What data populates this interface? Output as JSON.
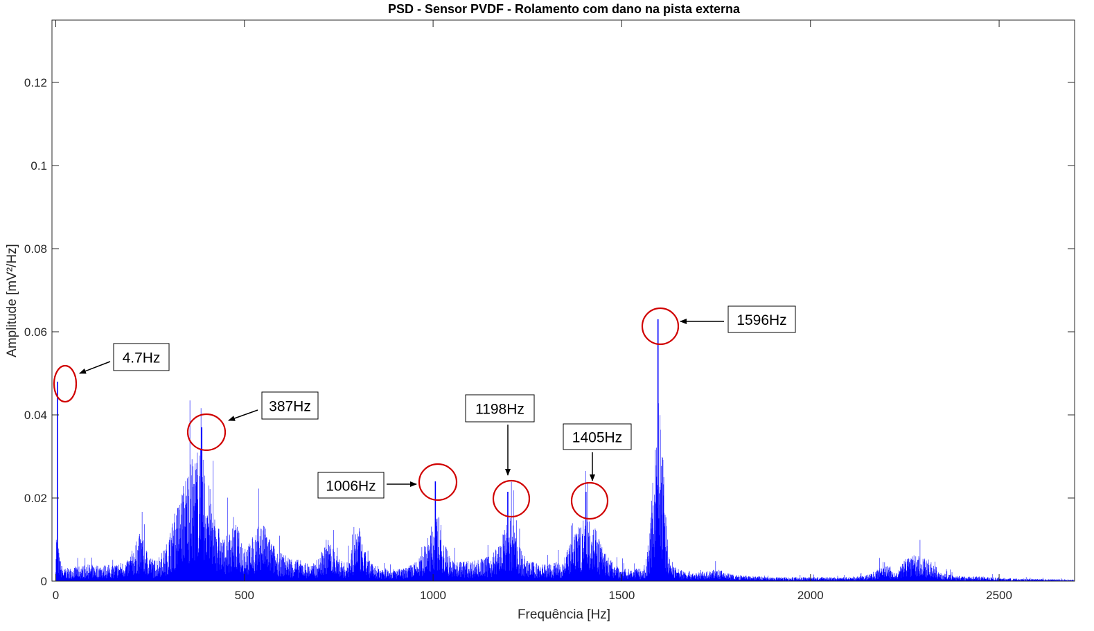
{
  "chart_data": {
    "type": "line",
    "title": "PSD - Sensor PVDF - Rolamento com dano na pista externa",
    "xlabel": "Frequência [Hz]",
    "ylabel": "Amplitude [mV²/Hz]",
    "xlim": [
      -10,
      2700
    ],
    "ylim": [
      0,
      0.135
    ],
    "xticks": [
      0,
      500,
      1000,
      1500,
      2000,
      2500
    ],
    "xtick_labels": [
      "0",
      "500",
      "1000",
      "1500",
      "2000",
      "2500"
    ],
    "yticks": [
      0,
      0.02,
      0.04,
      0.06,
      0.08,
      0.1,
      0.12
    ],
    "ytick_labels": [
      "0",
      "0.02",
      "0.04",
      "0.06",
      "0.08",
      "0.1",
      "0.12"
    ],
    "grid": false,
    "series_color": "#0000ff",
    "highlight_color": "#d00000",
    "peaks": [
      {
        "label": "4.7Hz",
        "x": 4.7,
        "y": 0.048
      },
      {
        "label": "387Hz",
        "x": 387,
        "y": 0.037
      },
      {
        "label": "1006Hz",
        "x": 1006,
        "y": 0.024
      },
      {
        "label": "1198Hz",
        "x": 1198,
        "y": 0.0215
      },
      {
        "label": "1405Hz",
        "x": 1405,
        "y": 0.0215
      },
      {
        "label": "1596Hz",
        "x": 1596,
        "y": 0.063
      }
    ],
    "envelope": [
      [
        0,
        0.014
      ],
      [
        10,
        0.006
      ],
      [
        20,
        0.003
      ],
      [
        80,
        0.004
      ],
      [
        150,
        0.004
      ],
      [
        190,
        0.005
      ],
      [
        210,
        0.009
      ],
      [
        225,
        0.012
      ],
      [
        240,
        0.008
      ],
      [
        260,
        0.005
      ],
      [
        290,
        0.008
      ],
      [
        310,
        0.015
      ],
      [
        330,
        0.021
      ],
      [
        350,
        0.028
      ],
      [
        370,
        0.031
      ],
      [
        380,
        0.034
      ],
      [
        400,
        0.026
      ],
      [
        420,
        0.018
      ],
      [
        440,
        0.01
      ],
      [
        460,
        0.012
      ],
      [
        470,
        0.016
      ],
      [
        490,
        0.011
      ],
      [
        510,
        0.009
      ],
      [
        530,
        0.012
      ],
      [
        545,
        0.015
      ],
      [
        565,
        0.011
      ],
      [
        590,
        0.007
      ],
      [
        620,
        0.006
      ],
      [
        650,
        0.005
      ],
      [
        680,
        0.004
      ],
      [
        700,
        0.006
      ],
      [
        720,
        0.011
      ],
      [
        740,
        0.007
      ],
      [
        770,
        0.004
      ],
      [
        790,
        0.01
      ],
      [
        800,
        0.015
      ],
      [
        815,
        0.008
      ],
      [
        840,
        0.004
      ],
      [
        880,
        0.003
      ],
      [
        920,
        0.003
      ],
      [
        960,
        0.005
      ],
      [
        985,
        0.01
      ],
      [
        1000,
        0.015
      ],
      [
        1015,
        0.016
      ],
      [
        1030,
        0.01
      ],
      [
        1050,
        0.005
      ],
      [
        1100,
        0.005
      ],
      [
        1150,
        0.006
      ],
      [
        1180,
        0.01
      ],
      [
        1195,
        0.014
      ],
      [
        1210,
        0.016
      ],
      [
        1225,
        0.009
      ],
      [
        1250,
        0.005
      ],
      [
        1300,
        0.004
      ],
      [
        1340,
        0.005
      ],
      [
        1370,
        0.01
      ],
      [
        1390,
        0.014
      ],
      [
        1410,
        0.018
      ],
      [
        1430,
        0.013
      ],
      [
        1450,
        0.008
      ],
      [
        1480,
        0.004
      ],
      [
        1520,
        0.003
      ],
      [
        1560,
        0.003
      ],
      [
        1575,
        0.012
      ],
      [
        1585,
        0.03
      ],
      [
        1596,
        0.045
      ],
      [
        1605,
        0.038
      ],
      [
        1615,
        0.02
      ],
      [
        1625,
        0.006
      ],
      [
        1650,
        0.003
      ],
      [
        1700,
        0.002
      ],
      [
        1750,
        0.003
      ],
      [
        1800,
        0.0015
      ],
      [
        1900,
        0.001
      ],
      [
        2000,
        0.001
      ],
      [
        2100,
        0.001
      ],
      [
        2150,
        0.0015
      ],
      [
        2180,
        0.003
      ],
      [
        2195,
        0.005
      ],
      [
        2210,
        0.004
      ],
      [
        2225,
        0.0015
      ],
      [
        2240,
        0.004
      ],
      [
        2260,
        0.007
      ],
      [
        2290,
        0.006
      ],
      [
        2320,
        0.005
      ],
      [
        2345,
        0.002
      ],
      [
        2400,
        0.0012
      ],
      [
        2460,
        0.0012
      ],
      [
        2500,
        0.0008
      ],
      [
        2600,
        0.0005
      ],
      [
        2700,
        0.0004
      ]
    ]
  }
}
